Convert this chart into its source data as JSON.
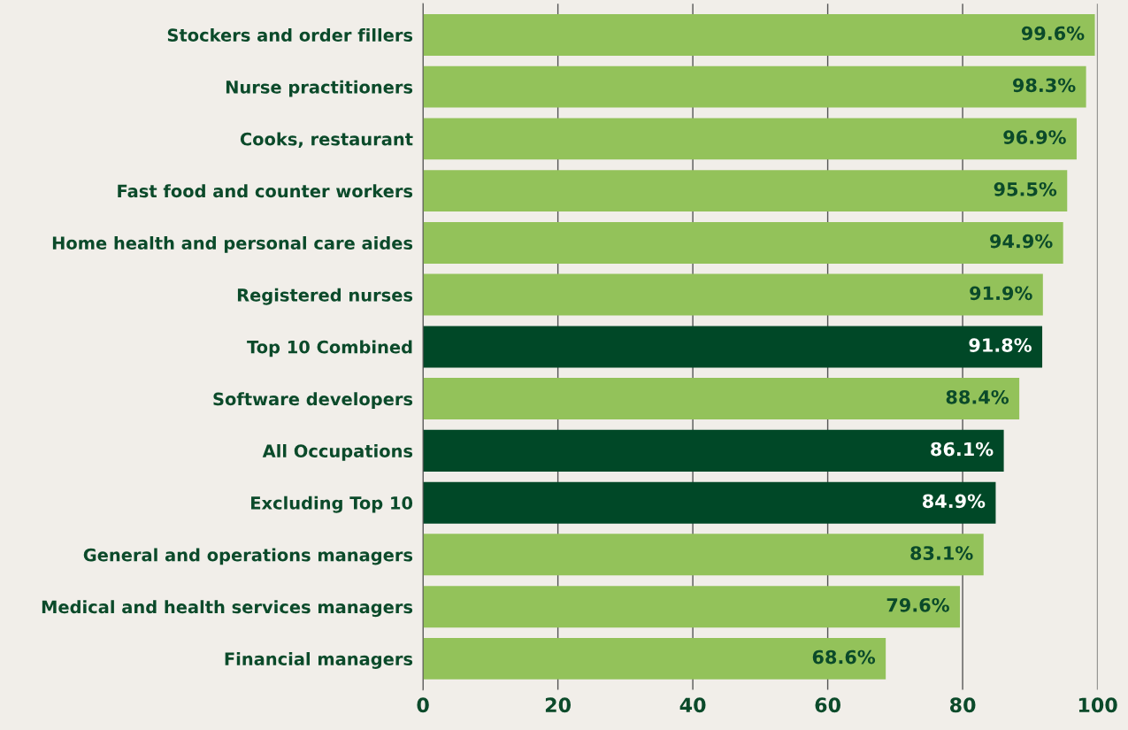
{
  "chart_data": {
    "type": "bar",
    "orientation": "horizontal",
    "categories": [
      "Stockers and order fillers",
      "Nurse practitioners",
      "Cooks, restaurant",
      "Fast food and counter workers",
      "Home health and personal care aides",
      "Registered nurses",
      "Top 10 Combined",
      "Software developers",
      "All Occupations",
      "Excluding Top 10",
      "General and operations managers",
      "Medical and health services managers",
      "Financial managers"
    ],
    "values": [
      99.6,
      98.3,
      96.9,
      95.5,
      94.9,
      91.9,
      91.8,
      88.4,
      86.1,
      84.9,
      83.1,
      79.6,
      68.6
    ],
    "value_labels": [
      "99.6%",
      "98.3%",
      "96.9%",
      "95.5%",
      "94.9%",
      "91.9%",
      "91.8%",
      "88.4%",
      "86.1%",
      "84.9%",
      "83.1%",
      "79.6%",
      "68.6%"
    ],
    "colors": [
      "#93c25a",
      "#93c25a",
      "#93c25a",
      "#93c25a",
      "#93c25a",
      "#93c25a",
      "#004827",
      "#93c25a",
      "#004827",
      "#004827",
      "#93c25a",
      "#93c25a",
      "#93c25a"
    ],
    "xlim": [
      0,
      100
    ],
    "xticks": [
      0,
      20,
      40,
      60,
      80,
      100
    ],
    "grid": "x",
    "legend": false
  }
}
